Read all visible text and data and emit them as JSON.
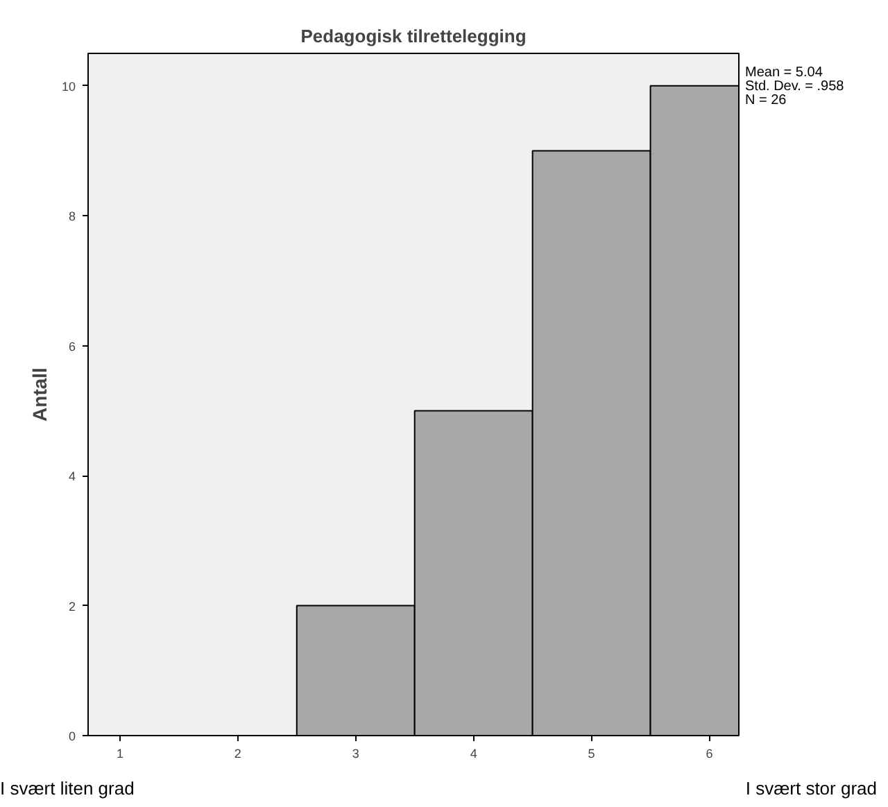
{
  "chart_data": {
    "type": "histogram",
    "title": "Pedagogisk tilrettelegging",
    "ylabel": "Antall",
    "bins": [
      2.5,
      3.5,
      4.5,
      5.5,
      6.25
    ],
    "values": [
      2,
      5,
      9,
      10
    ],
    "color": "#a8a8a8",
    "xlim": [
      0.73,
      6.25
    ],
    "xticks": [
      1,
      2,
      3,
      4,
      5,
      6
    ],
    "ylim": [
      0,
      10.5
    ],
    "yticks": [
      0,
      2,
      4,
      6,
      8,
      10
    ],
    "grid": false,
    "annotations": [
      "Mean = 5.04",
      "Std. Dev. = .958",
      "N = 26",
      "I svært liten grad",
      "I svært stor grad"
    ]
  }
}
